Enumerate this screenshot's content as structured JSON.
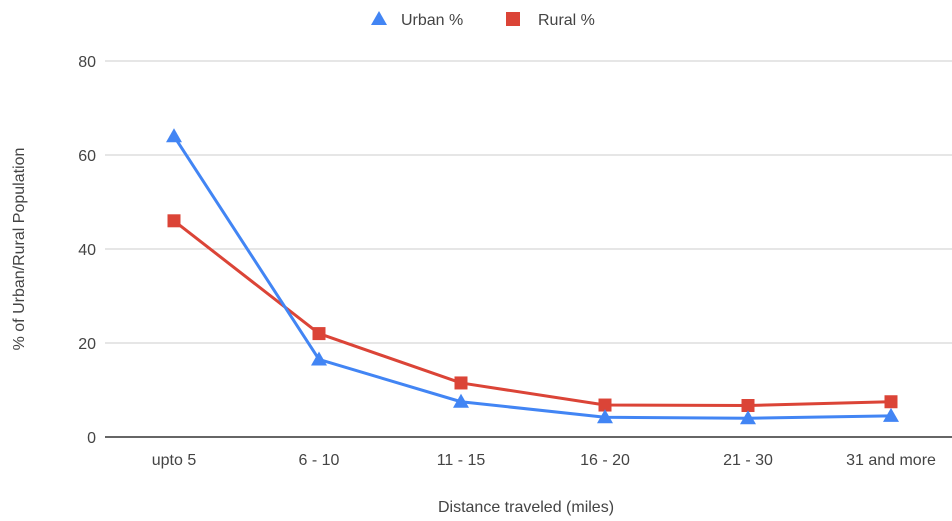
{
  "chart_data": {
    "type": "line",
    "title": "",
    "xlabel": "Distance traveled (miles)",
    "ylabel": "% of Urban/Rural Population",
    "categories": [
      "upto 5",
      "6 - 10",
      "11 - 15",
      "16 - 20",
      "21 - 30",
      "31 and more"
    ],
    "ylim": [
      0,
      80
    ],
    "yticks": [
      0,
      20,
      40,
      60,
      80
    ],
    "grid": true,
    "legend_position": "top",
    "series": [
      {
        "name": "Urban %",
        "marker": "triangle",
        "color": "#4285f4",
        "values": [
          64.0,
          16.5,
          7.5,
          4.2,
          4.0,
          4.5
        ]
      },
      {
        "name": "Rural %",
        "marker": "square",
        "color": "#db4437",
        "values": [
          46.0,
          22.0,
          11.5,
          6.8,
          6.7,
          7.5
        ]
      }
    ]
  }
}
